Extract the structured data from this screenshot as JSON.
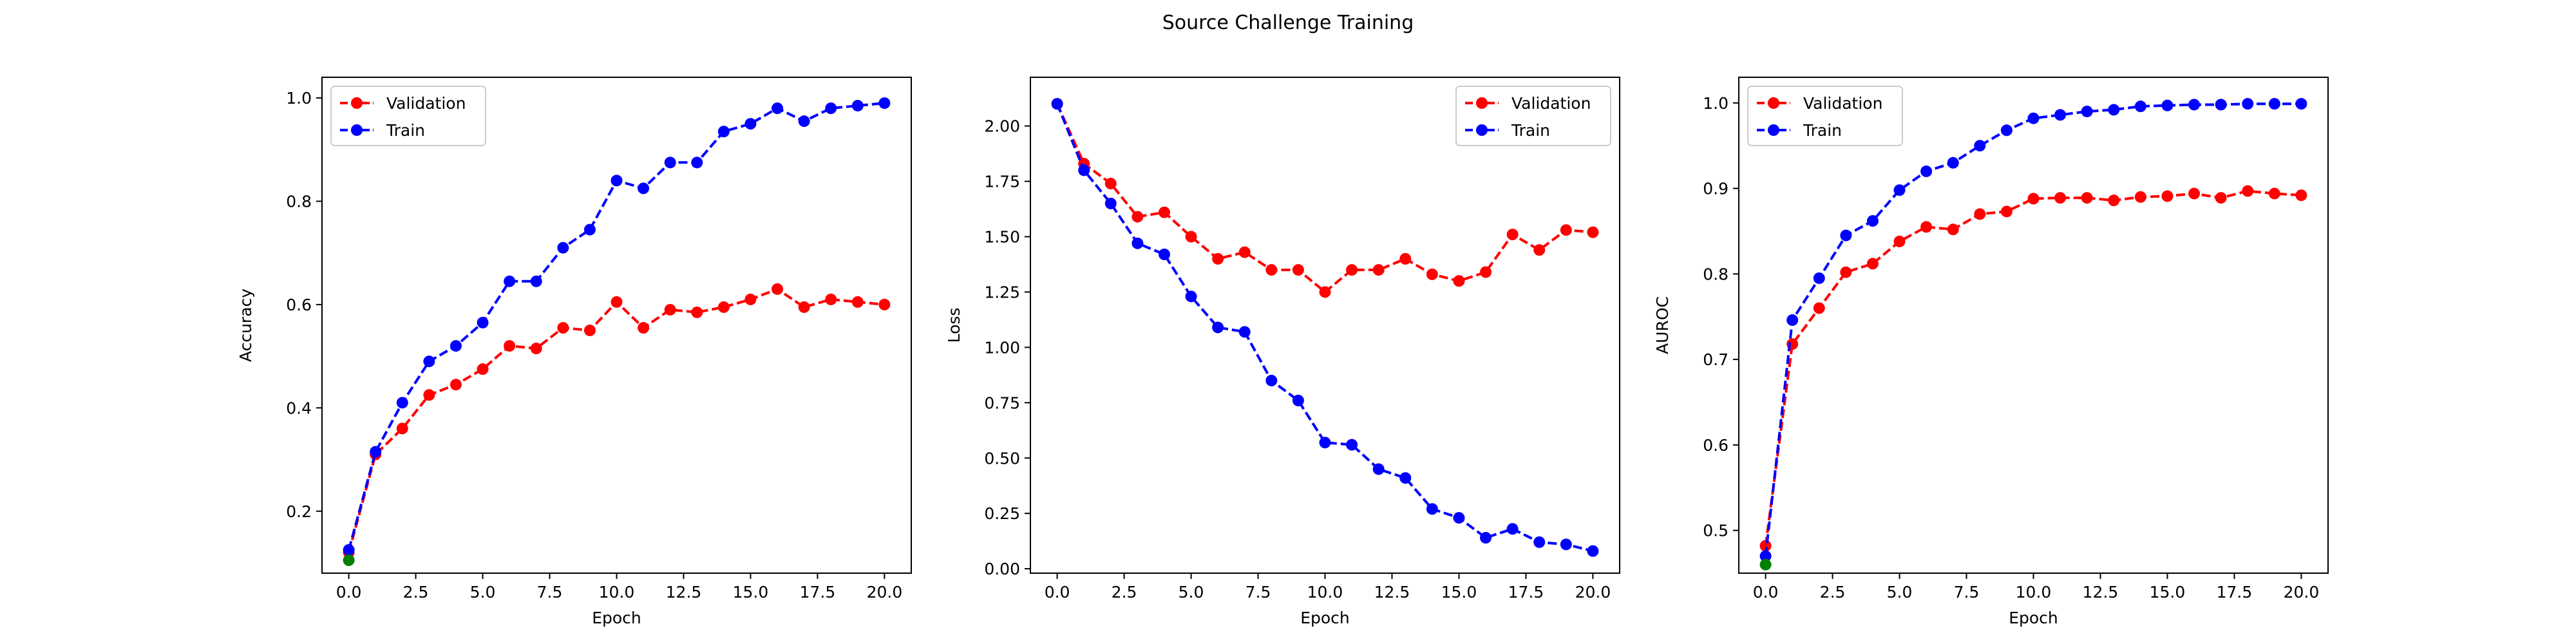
{
  "figure": {
    "title": "Source Challenge Training"
  },
  "chart_data": [
    {
      "type": "line",
      "title": "",
      "xlabel": "Epoch",
      "ylabel": "Accuracy",
      "xlim": [
        -1,
        21
      ],
      "ylim": [
        0.08,
        1.04
      ],
      "xticks": [
        "0.0",
        "2.5",
        "5.0",
        "7.5",
        "10.0",
        "12.5",
        "15.0",
        "17.5",
        "20.0"
      ],
      "yticks": [
        "0.2",
        "0.4",
        "0.6",
        "0.8",
        "1.0"
      ],
      "legend_position": "top-left",
      "x": [
        0,
        1,
        2,
        3,
        4,
        5,
        6,
        7,
        8,
        9,
        10,
        11,
        12,
        13,
        14,
        15,
        16,
        17,
        18,
        19,
        20
      ],
      "series": [
        {
          "name": "Validation",
          "color": "#ff0000",
          "linestyle": "dashed",
          "values": [
            0.12,
            0.31,
            0.36,
            0.425,
            0.445,
            0.475,
            0.52,
            0.515,
            0.555,
            0.55,
            0.605,
            0.555,
            0.59,
            0.585,
            0.595,
            0.61,
            0.63,
            0.595,
            0.61,
            0.605,
            0.6
          ]
        },
        {
          "name": "Train",
          "color": "#0000ff",
          "linestyle": "dashed",
          "values": [
            0.125,
            0.315,
            0.41,
            0.49,
            0.52,
            0.565,
            0.645,
            0.645,
            0.71,
            0.745,
            0.84,
            0.825,
            0.875,
            0.875,
            0.935,
            0.95,
            0.98,
            0.955,
            0.98,
            0.985,
            0.99
          ]
        }
      ],
      "extra_points": [
        {
          "x": 0,
          "y": 0.105,
          "color": "#008000"
        }
      ]
    },
    {
      "type": "line",
      "title": "",
      "xlabel": "Epoch",
      "ylabel": "Loss",
      "xlim": [
        -1,
        21
      ],
      "ylim": [
        -0.02,
        2.22
      ],
      "xticks": [
        "0.0",
        "2.5",
        "5.0",
        "7.5",
        "10.0",
        "12.5",
        "15.0",
        "17.5",
        "20.0"
      ],
      "yticks": [
        "0.00",
        "0.25",
        "0.50",
        "0.75",
        "1.00",
        "1.25",
        "1.50",
        "1.75",
        "2.00"
      ],
      "legend_position": "top-right",
      "x": [
        0,
        1,
        2,
        3,
        4,
        5,
        6,
        7,
        8,
        9,
        10,
        11,
        12,
        13,
        14,
        15,
        16,
        17,
        18,
        19,
        20
      ],
      "series": [
        {
          "name": "Validation",
          "color": "#ff0000",
          "linestyle": "dashed",
          "values": [
            2.1,
            1.83,
            1.74,
            1.59,
            1.61,
            1.5,
            1.4,
            1.43,
            1.35,
            1.35,
            1.25,
            1.35,
            1.35,
            1.4,
            1.33,
            1.3,
            1.34,
            1.51,
            1.44,
            1.53,
            1.52
          ]
        },
        {
          "name": "Train",
          "color": "#0000ff",
          "linestyle": "dashed",
          "values": [
            2.1,
            1.8,
            1.65,
            1.47,
            1.42,
            1.23,
            1.09,
            1.07,
            0.85,
            0.76,
            0.57,
            0.56,
            0.45,
            0.41,
            0.27,
            0.23,
            0.14,
            0.18,
            0.12,
            0.11,
            0.08
          ]
        }
      ],
      "extra_points": []
    },
    {
      "type": "line",
      "title": "",
      "xlabel": "Epoch",
      "ylabel": "AUROC",
      "xlim": [
        -1,
        21
      ],
      "ylim": [
        0.45,
        1.03
      ],
      "xticks": [
        "0.0",
        "2.5",
        "5.0",
        "7.5",
        "10.0",
        "12.5",
        "15.0",
        "17.5",
        "20.0"
      ],
      "yticks": [
        "0.5",
        "0.6",
        "0.7",
        "0.8",
        "0.9",
        "1.0"
      ],
      "legend_position": "top-left",
      "x": [
        0,
        1,
        2,
        3,
        4,
        5,
        6,
        7,
        8,
        9,
        10,
        11,
        12,
        13,
        14,
        15,
        16,
        17,
        18,
        19,
        20
      ],
      "series": [
        {
          "name": "Validation",
          "color": "#ff0000",
          "linestyle": "dashed",
          "values": [
            0.482,
            0.718,
            0.76,
            0.802,
            0.812,
            0.838,
            0.855,
            0.852,
            0.87,
            0.873,
            0.888,
            0.889,
            0.889,
            0.886,
            0.89,
            0.891,
            0.894,
            0.889,
            0.897,
            0.894,
            0.892
          ]
        },
        {
          "name": "Train",
          "color": "#0000ff",
          "linestyle": "dashed",
          "values": [
            0.47,
            0.746,
            0.795,
            0.845,
            0.862,
            0.898,
            0.92,
            0.93,
            0.95,
            0.968,
            0.982,
            0.986,
            0.99,
            0.992,
            0.996,
            0.997,
            0.998,
            0.998,
            0.999,
            0.999,
            0.999
          ]
        }
      ],
      "extra_points": [
        {
          "x": 0,
          "y": 0.46,
          "color": "#008000"
        }
      ]
    }
  ]
}
